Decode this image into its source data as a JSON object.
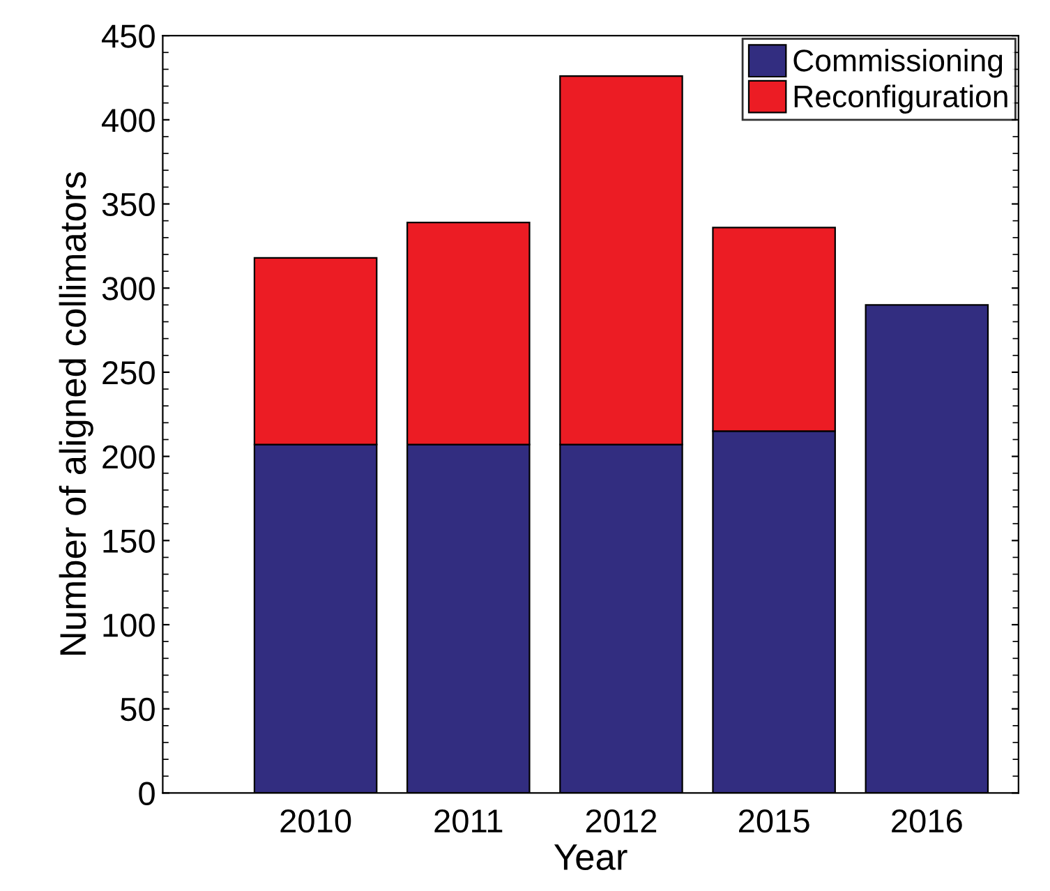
{
  "chart_data": {
    "type": "bar",
    "stacked": true,
    "xlabel": "Year",
    "ylabel": "Number of aligned collimators",
    "categories": [
      "2010",
      "2011",
      "2012",
      "2015",
      "2016"
    ],
    "series": [
      {
        "name": "Commissioning",
        "color": "#322d80",
        "values": [
          207,
          207,
          207,
          215,
          290
        ]
      },
      {
        "name": "Reconfiguration",
        "color": "#ec1c24",
        "values": [
          111,
          132,
          219,
          121,
          null
        ]
      }
    ],
    "ylim": [
      0,
      450
    ],
    "yticks": [
      0,
      50,
      100,
      150,
      200,
      250,
      300,
      350,
      400,
      450
    ],
    "grid": false,
    "legend": "top right"
  }
}
